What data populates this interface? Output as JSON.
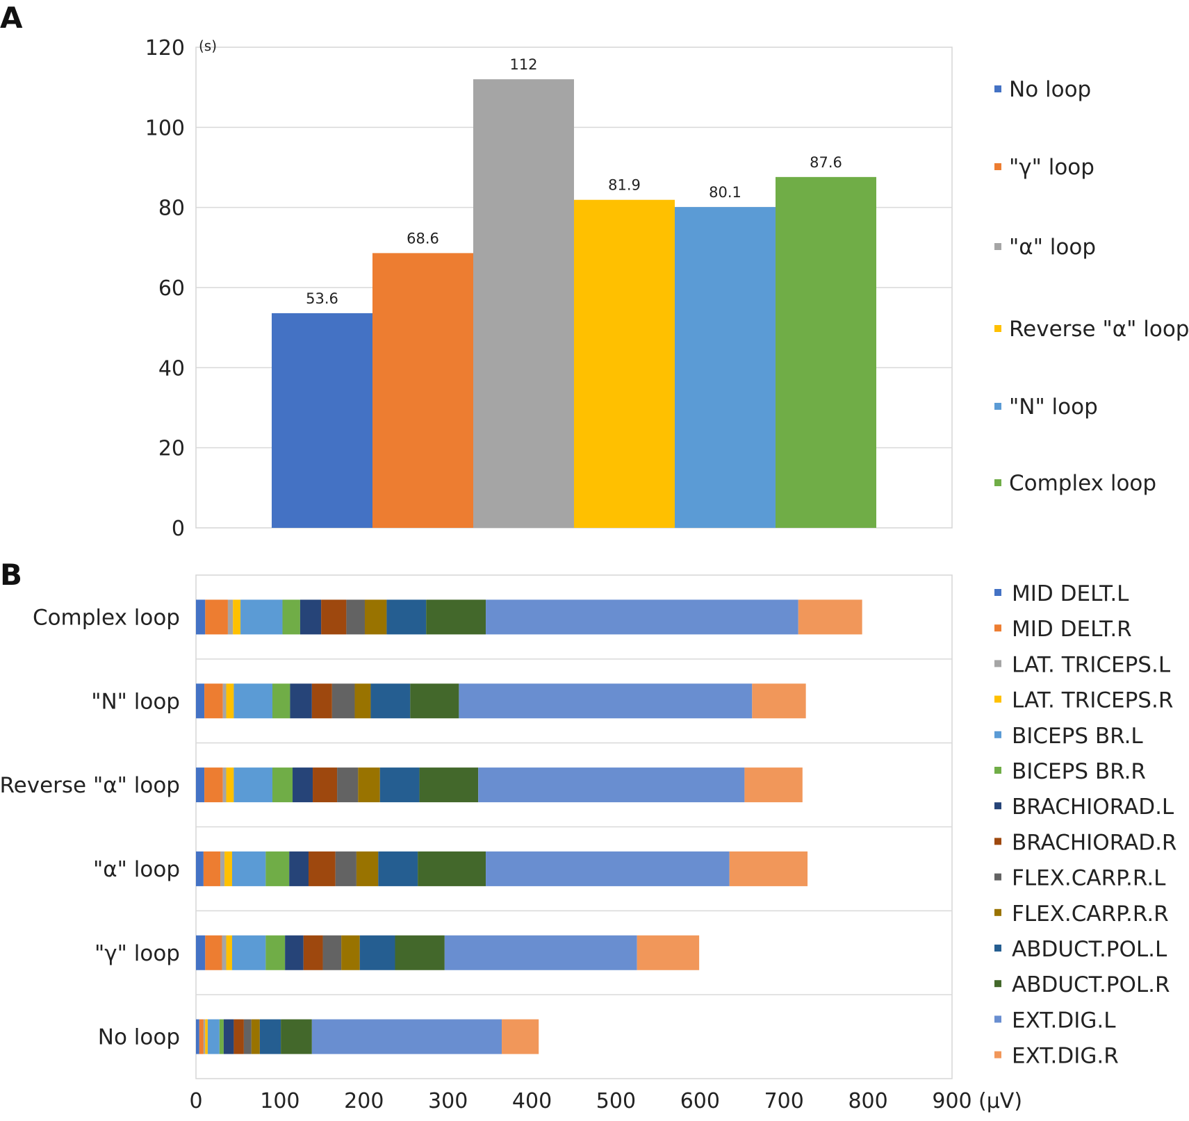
{
  "panels": {
    "a_letter": "A",
    "b_letter": "B"
  },
  "chart_data": [
    {
      "id": "A",
      "type": "bar",
      "unit_label": "(s)",
      "categories": [
        "No loop",
        "\"γ\" loop",
        "\"α\" loop",
        "Reverse \"α\" loop",
        "\"N\" loop",
        "Complex loop"
      ],
      "values": [
        53.6,
        68.6,
        112,
        81.9,
        80.1,
        87.6
      ],
      "value_labels": [
        "53.6",
        "68.6",
        "112",
        "81.9",
        "80.1",
        "87.6"
      ],
      "colors": [
        "#4472C4",
        "#ED7D31",
        "#A5A5A5",
        "#FFC000",
        "#5B9BD5",
        "#70AD47"
      ],
      "ylim": [
        0,
        120
      ],
      "yticks": [
        "0",
        "20",
        "40",
        "60",
        "80",
        "100",
        "120"
      ],
      "grid": true,
      "legend_position": "right"
    },
    {
      "id": "B",
      "type": "bar",
      "orientation": "horizontal-stacked",
      "unit_label": "(μV)",
      "categories": [
        "Complex loop",
        "\"N\" loop",
        "Reverse \"α\" loop",
        "\"α\" loop",
        "\"γ\" loop",
        "No loop"
      ],
      "xlim": [
        0,
        900
      ],
      "xticks": [
        "0",
        "100",
        "200",
        "300",
        "400",
        "500",
        "600",
        "700",
        "800",
        "900"
      ],
      "grid": true,
      "legend_position": "right",
      "series": [
        {
          "name": "MID DELT.L",
          "color": "#4472C4",
          "values": [
            11,
            10,
            10,
            9,
            11,
            4
          ]
        },
        {
          "name": "MID DELT.R",
          "color": "#ED7D31",
          "values": [
            27,
            22,
            22,
            20,
            20,
            5
          ]
        },
        {
          "name": "LAT. TRICEPS.L",
          "color": "#A5A5A5",
          "values": [
            6,
            4,
            4,
            5,
            5,
            2
          ]
        },
        {
          "name": "LAT. TRICEPS.R",
          "color": "#FFC000",
          "values": [
            9,
            9,
            9,
            9,
            7,
            3
          ]
        },
        {
          "name": "BICEPS BR.L",
          "color": "#5B9BD5",
          "values": [
            50,
            46,
            46,
            40,
            40,
            14
          ]
        },
        {
          "name": "BICEPS BR.R",
          "color": "#70AD47",
          "values": [
            21,
            21,
            24,
            28,
            23,
            5
          ]
        },
        {
          "name": "BRACHIORAD.L",
          "color": "#264478",
          "values": [
            25,
            26,
            24,
            23,
            22,
            12
          ]
        },
        {
          "name": "BRACHIORAD.R",
          "color": "#9E480E",
          "values": [
            30,
            24,
            29,
            32,
            23,
            12
          ]
        },
        {
          "name": "FLEX.CARP.R.L",
          "color": "#636363",
          "values": [
            22,
            27,
            25,
            25,
            22,
            9
          ]
        },
        {
          "name": "FLEX.CARP.R.R",
          "color": "#997300",
          "values": [
            26,
            19,
            26,
            26,
            22,
            10
          ]
        },
        {
          "name": "ABDUCT.POL.L",
          "color": "#255E91",
          "values": [
            47,
            47,
            47,
            47,
            42,
            25
          ]
        },
        {
          "name": "ABDUCT.POL.R",
          "color": "#43682B",
          "values": [
            71,
            58,
            70,
            81,
            59,
            37
          ]
        },
        {
          "name": "EXT.DIG.L",
          "color": "#698ED0",
          "values": [
            372,
            349,
            317,
            290,
            229,
            226
          ]
        },
        {
          "name": "EXT.DIG.R",
          "color": "#F1975A",
          "values": [
            76,
            64,
            69,
            93,
            74,
            44
          ]
        }
      ]
    }
  ]
}
